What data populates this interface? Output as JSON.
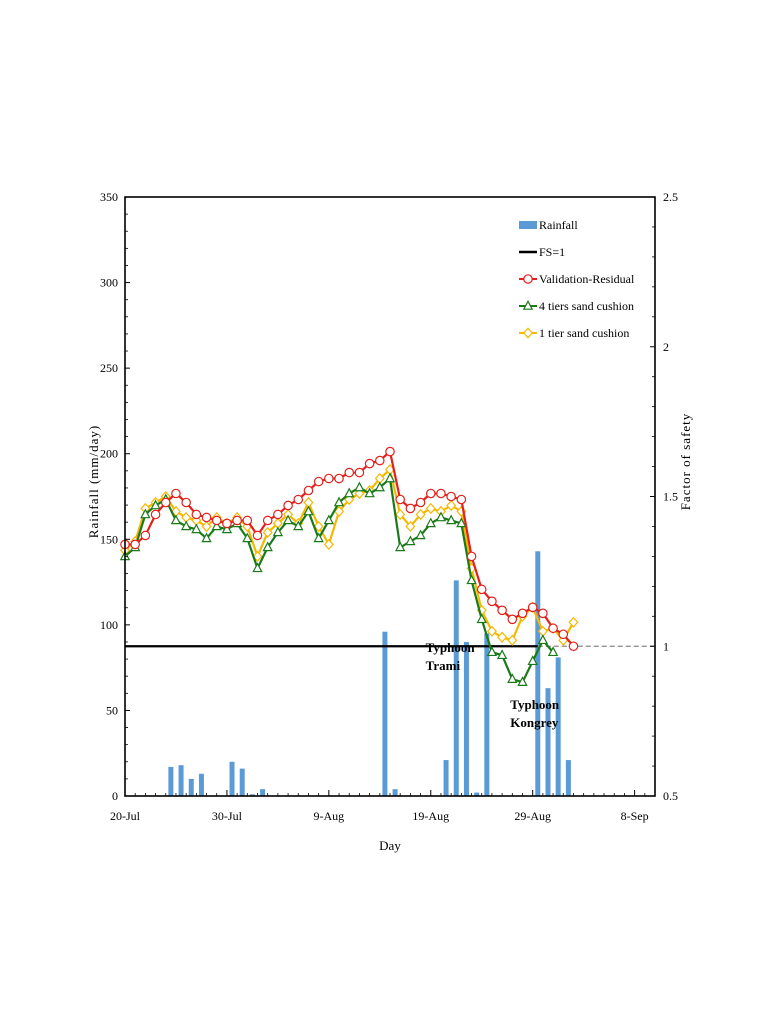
{
  "chart_data": {
    "type": "bar+line",
    "xlabel": "Day",
    "ylabel_left": "Rainfall (mm/day)",
    "ylabel_right": "Factor of safety",
    "x_ticks": [
      {
        "day": 0,
        "label": "20-Jul"
      },
      {
        "day": 10,
        "label": "30-Jul"
      },
      {
        "day": 20,
        "label": "9-Aug"
      },
      {
        "day": 30,
        "label": "19-Aug"
      },
      {
        "day": 40,
        "label": "29-Aug"
      },
      {
        "day": 50,
        "label": "8-Sep"
      }
    ],
    "xlim": [
      0,
      52
    ],
    "ylim_left": [
      0,
      350
    ],
    "ylim_right": [
      0.5,
      2.5
    ],
    "left_ticks": [
      0,
      50,
      100,
      150,
      200,
      250,
      300,
      350
    ],
    "right_ticks": [
      "0.5",
      "1",
      "1.5",
      "2",
      "2.5"
    ],
    "fs_reference": 1,
    "rainfall": {
      "name": "Rainfall",
      "color": "#5b9bd5",
      "days": [
        4.5,
        5.5,
        6.5,
        7.5,
        10.5,
        11.5,
        12.5,
        13.5,
        25.5,
        26.5,
        31.5,
        32.5,
        33.5,
        34.5,
        35.5,
        40.5,
        41.5,
        42.5,
        43.5
      ],
      "values": [
        17,
        18,
        10,
        13,
        20,
        16,
        1,
        4,
        96,
        4,
        21,
        126,
        90,
        2,
        95,
        143,
        63,
        81,
        21
      ]
    },
    "fs_series": [
      {
        "name": "Validation-Residual",
        "color": "#e3201b",
        "marker": "circle",
        "x": [
          0,
          1,
          2,
          3,
          4,
          5,
          6,
          7,
          8,
          9,
          10,
          11,
          12,
          13,
          14,
          15,
          16,
          17,
          18,
          19,
          20,
          21,
          22,
          23,
          24,
          25,
          26,
          27,
          28,
          29,
          30,
          31,
          32,
          33,
          34,
          35,
          36,
          37,
          38,
          39,
          40,
          41,
          42,
          43,
          44
        ],
        "y": [
          1.34,
          1.34,
          1.37,
          1.44,
          1.48,
          1.51,
          1.48,
          1.44,
          1.43,
          1.42,
          1.41,
          1.42,
          1.42,
          1.37,
          1.42,
          1.44,
          1.47,
          1.49,
          1.52,
          1.55,
          1.56,
          1.56,
          1.58,
          1.58,
          1.61,
          1.62,
          1.65,
          1.49,
          1.46,
          1.48,
          1.51,
          1.51,
          1.5,
          1.49,
          1.3,
          1.19,
          1.15,
          1.12,
          1.09,
          1.11,
          1.13,
          1.11,
          1.06,
          1.04,
          1.0
        ]
      },
      {
        "name": "4 tiers sand cushion",
        "color": "#1a7a1a",
        "marker": "triangle",
        "x": [
          0,
          1,
          2,
          3,
          4,
          5,
          6,
          7,
          8,
          9,
          10,
          11,
          12,
          13,
          14,
          15,
          16,
          17,
          18,
          19,
          20,
          21,
          22,
          23,
          24,
          25,
          26,
          27,
          28,
          29,
          30,
          31,
          32,
          33,
          34,
          35,
          36,
          37,
          38,
          39,
          40,
          41,
          42
        ],
        "y": [
          1.3,
          1.33,
          1.44,
          1.47,
          1.49,
          1.42,
          1.4,
          1.39,
          1.36,
          1.4,
          1.39,
          1.41,
          1.36,
          1.26,
          1.33,
          1.38,
          1.42,
          1.4,
          1.45,
          1.36,
          1.42,
          1.48,
          1.51,
          1.53,
          1.51,
          1.53,
          1.56,
          1.33,
          1.35,
          1.37,
          1.41,
          1.43,
          1.42,
          1.41,
          1.22,
          1.09,
          0.98,
          0.97,
          0.89,
          0.88,
          0.95,
          1.02,
          0.98
        ]
      },
      {
        "name": "1 tier sand cushion",
        "color": "#f5b800",
        "marker": "diamond",
        "x": [
          0,
          1,
          2,
          3,
          4,
          5,
          6,
          7,
          8,
          9,
          10,
          11,
          12,
          13,
          14,
          15,
          16,
          17,
          18,
          19,
          20,
          21,
          22,
          23,
          24,
          25,
          26,
          27,
          28,
          29,
          30,
          31,
          32,
          33,
          34,
          35,
          36,
          37,
          38,
          39,
          40,
          41,
          42,
          43,
          44
        ],
        "y": [
          1.32,
          1.35,
          1.46,
          1.48,
          1.5,
          1.45,
          1.43,
          1.42,
          1.4,
          1.43,
          1.41,
          1.43,
          1.4,
          1.3,
          1.38,
          1.41,
          1.44,
          1.41,
          1.48,
          1.4,
          1.34,
          1.45,
          1.49,
          1.51,
          1.52,
          1.56,
          1.59,
          1.44,
          1.4,
          1.44,
          1.46,
          1.45,
          1.47,
          1.45,
          1.26,
          1.12,
          1.05,
          1.03,
          1.02,
          1.1,
          1.13,
          1.05,
          1.06,
          1.02,
          1.08
        ]
      }
    ],
    "legend": [
      {
        "label": "Rainfall",
        "type": "bar",
        "color": "#5b9bd5"
      },
      {
        "label": "FS=1",
        "type": "line",
        "color": "#000000"
      },
      {
        "label": "Validation-Residual",
        "type": "line-marker",
        "color": "#e3201b",
        "marker": "circle"
      },
      {
        "label": "4 tiers sand cushion",
        "type": "line-marker",
        "color": "#1a7a1a",
        "marker": "triangle"
      },
      {
        "label": "1 tier sand cushion",
        "type": "line-marker",
        "color": "#f5b800",
        "marker": "diamond"
      }
    ],
    "legend_position": "top-right",
    "annotations": [
      {
        "lines": [
          "Typhoon",
          "Trami"
        ],
        "day": 29.5,
        "fs": 0.98
      },
      {
        "lines": [
          "Typhoon",
          "Kongrey"
        ],
        "day": 37.8,
        "fs": 0.79
      }
    ]
  }
}
